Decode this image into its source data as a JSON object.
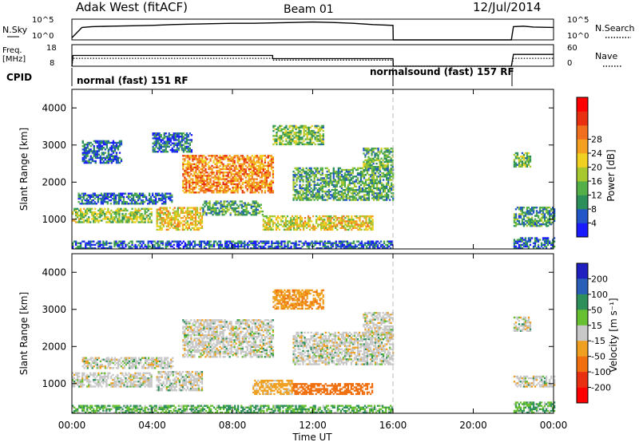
{
  "header": {
    "station": "Adak West (fitACF)",
    "beam": "Beam 01",
    "date": "12/Jul/2014"
  },
  "colors": {
    "axis": "#000000",
    "gap_line": "#bbbbbb"
  },
  "chart_data": [
    {
      "type": "line",
      "panel": "nsky-nsearch",
      "left_label": "N.Sky",
      "right_label": "N.Search",
      "left_ticks": [
        "10^5",
        "10^0"
      ],
      "right_ticks": [
        "10^5",
        "10^0"
      ],
      "series": [
        {
          "name": "N.Sky",
          "style": "solid",
          "x": [
            0.0,
            0.5,
            1,
            2,
            3,
            4,
            5,
            6,
            7,
            8,
            9,
            10,
            11,
            12,
            13,
            14,
            15,
            16,
            16.01,
            21.9,
            22,
            22.5,
            23,
            24
          ],
          "y": [
            0.5,
            3.0,
            3.2,
            3.3,
            3.4,
            3.5,
            3.7,
            3.8,
            3.9,
            4.0,
            4.0,
            4.1,
            4.2,
            4.3,
            4.2,
            4.0,
            3.7,
            3.5,
            0.0,
            0.0,
            3.2,
            3.3,
            3.1,
            3.0
          ]
        }
      ],
      "x_range": [
        0,
        24
      ]
    },
    {
      "type": "line",
      "panel": "freq-nave",
      "left_label": "Freq.",
      "left_unit": "[MHz]",
      "right_label": "Nave",
      "left_ticks": [
        "18",
        "8"
      ],
      "right_ticks": [
        "60",
        "0"
      ],
      "series": [
        {
          "name": "Freq.",
          "style": "solid",
          "x": [
            0,
            0.05,
            10,
            10.01,
            16,
            16.01,
            21.9,
            22,
            24
          ],
          "y": [
            8,
            13,
            13,
            11.5,
            11.5,
            8,
            8,
            13.5,
            13.5
          ]
        },
        {
          "name": "Nave",
          "style": "dotted",
          "x": [
            0,
            0.05,
            10,
            10.01,
            16,
            16.01,
            21.9,
            22,
            24
          ],
          "y": [
            0,
            22,
            22,
            17,
            17,
            0,
            0,
            22,
            22
          ]
        }
      ],
      "x_range": [
        0,
        24
      ]
    },
    {
      "type": "table",
      "panel": "cpid",
      "label": "CPID",
      "entries": [
        {
          "start": 0,
          "end": 16,
          "text": "normal (fast) 151 RF"
        },
        {
          "start": 16,
          "end": 22,
          "text": "normalsound (fast) 157 RF"
        }
      ]
    },
    {
      "type": "heatmap",
      "panel": "power",
      "ylabel": "Slant Range [km]",
      "ylim": [
        200,
        4500
      ],
      "y_ticks": [
        1000,
        2000,
        3000,
        4000
      ],
      "x_range": [
        0,
        24
      ],
      "colorbar": {
        "label": "Power [dB]",
        "ticks": [
          4,
          8,
          12,
          16,
          20,
          24,
          28
        ],
        "range": [
          0,
          32
        ],
        "colors": [
          "#1a1aff",
          "#2255c8",
          "#2d8f5a",
          "#55b04a",
          "#a8c830",
          "#f0d020",
          "#f4a020",
          "#f07020",
          "#e83010",
          "#ff0000"
        ]
      },
      "regions": [
        {
          "t0": 0.0,
          "t1": 4.0,
          "r0": 900,
          "r1": 1300,
          "v": 14
        },
        {
          "t0": 0.3,
          "t1": 5.0,
          "r0": 1400,
          "r1": 1700,
          "v": 6
        },
        {
          "t0": 0.5,
          "t1": 2.5,
          "r0": 2500,
          "r1": 3100,
          "v": 5
        },
        {
          "t0": 4.2,
          "t1": 6.5,
          "r0": 700,
          "r1": 1300,
          "v": 18
        },
        {
          "t0": 4.0,
          "t1": 6.0,
          "r0": 2800,
          "r1": 3300,
          "v": 6
        },
        {
          "t0": 5.5,
          "t1": 10.0,
          "r0": 1700,
          "r1": 2700,
          "v": 22
        },
        {
          "t0": 6.5,
          "t1": 9.5,
          "r0": 1100,
          "r1": 1500,
          "v": 10
        },
        {
          "t0": 9.5,
          "t1": 11.5,
          "r0": 700,
          "r1": 1100,
          "v": 16
        },
        {
          "t0": 10.0,
          "t1": 12.5,
          "r0": 3000,
          "r1": 3500,
          "v": 12
        },
        {
          "t0": 11.5,
          "t1": 15.0,
          "r0": 700,
          "r1": 1100,
          "v": 18
        },
        {
          "t0": 11.0,
          "t1": 16.0,
          "r0": 1500,
          "r1": 2400,
          "v": 10
        },
        {
          "t0": 14.5,
          "t1": 16.0,
          "r0": 2300,
          "r1": 2900,
          "v": 11
        },
        {
          "t0": 0.0,
          "t1": 16.0,
          "r0": 200,
          "r1": 400,
          "v": 5
        },
        {
          "t0": 22.0,
          "t1": 22.8,
          "r0": 2400,
          "r1": 2800,
          "v": 12
        },
        {
          "t0": 22.0,
          "t1": 24.0,
          "r0": 800,
          "r1": 1300,
          "v": 9
        },
        {
          "t0": 22.0,
          "t1": 24.0,
          "r0": 200,
          "r1": 500,
          "v": 6
        }
      ]
    },
    {
      "type": "heatmap",
      "panel": "velocity",
      "ylabel": "Slant Range [km]",
      "xlabel": "Time UT",
      "ylim": [
        200,
        4500
      ],
      "y_ticks": [
        1000,
        2000,
        3000,
        4000
      ],
      "x_ticks": [
        "00:00",
        "04:00",
        "08:00",
        "12:00",
        "16:00",
        "20:00",
        "00:00"
      ],
      "x_range": [
        0,
        24
      ],
      "colorbar": {
        "label": "Velocity [m s⁻¹]",
        "ticks": [
          "200",
          "100",
          "50",
          "15",
          "-15",
          "-50",
          "-100",
          "-200"
        ],
        "colors": [
          "#2020c0",
          "#2a5fb8",
          "#2d8f5a",
          "#66c030",
          "#c8c8c8",
          "#f0a020",
          "#f07010",
          "#e83010",
          "#ff0000"
        ]
      },
      "regions": [
        {
          "t0": 0.0,
          "t1": 4.0,
          "r0": 900,
          "r1": 1300,
          "v": 0
        },
        {
          "t0": 0.5,
          "t1": 5.0,
          "r0": 1400,
          "r1": 1700,
          "v": 0
        },
        {
          "t0": 4.2,
          "t1": 6.5,
          "r0": 800,
          "r1": 1300,
          "v": 0
        },
        {
          "t0": 5.5,
          "t1": 10.0,
          "r0": 1700,
          "r1": 2700,
          "v": 0
        },
        {
          "t0": 9.0,
          "t1": 11.0,
          "r0": 700,
          "r1": 1100,
          "v": -30
        },
        {
          "t0": 11.0,
          "t1": 15.0,
          "r0": 700,
          "r1": 1000,
          "v": -80
        },
        {
          "t0": 10.0,
          "t1": 12.5,
          "r0": 3000,
          "r1": 3500,
          "v": -40
        },
        {
          "t0": 11.0,
          "t1": 16.0,
          "r0": 1500,
          "r1": 2400,
          "v": 0
        },
        {
          "t0": 14.5,
          "t1": 16.0,
          "r0": 2300,
          "r1": 2900,
          "v": 0
        },
        {
          "t0": 0.0,
          "t1": 16.0,
          "r0": 200,
          "r1": 400,
          "v": 30
        },
        {
          "t0": 22.0,
          "t1": 22.8,
          "r0": 2400,
          "r1": 2800,
          "v": 0
        },
        {
          "t0": 22.0,
          "t1": 24.0,
          "r0": 900,
          "r1": 1200,
          "v": 0
        },
        {
          "t0": 22.0,
          "t1": 24.0,
          "r0": 200,
          "r1": 500,
          "v": 30
        }
      ]
    }
  ]
}
